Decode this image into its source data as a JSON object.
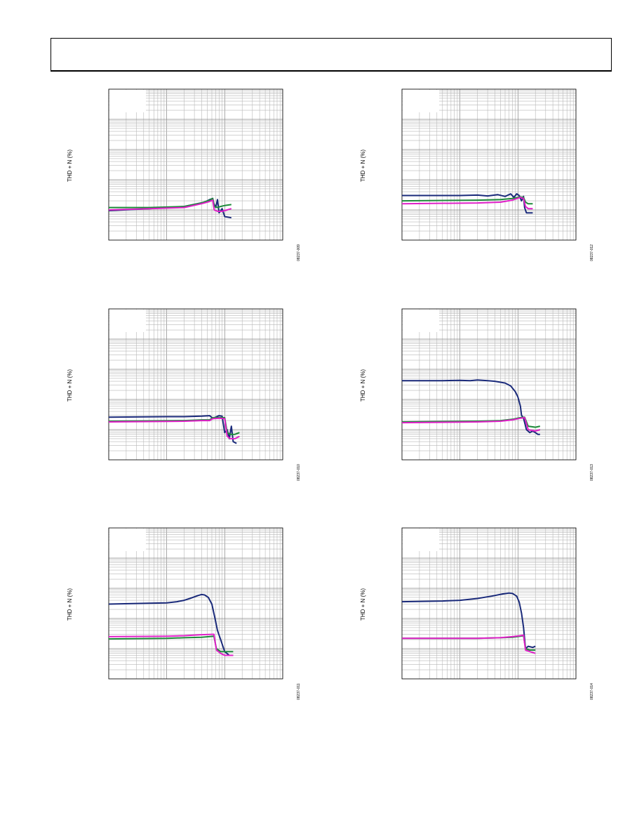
{
  "header": {
    "title": ""
  },
  "colors": {
    "navy": "#1a2a7a",
    "green": "#1e8a3a",
    "magenta": "#e020c8",
    "grid": "#b8b8b8"
  },
  "chart_data": [
    {
      "type": "line",
      "ylabel": "THD + N (%)",
      "figure_code": "08237-009",
      "xscale": "log",
      "yscale": "log",
      "xlim": [
        1,
        1000
      ],
      "ylim": [
        0.001,
        100
      ],
      "series": [
        {
          "color": "navy",
          "points": [
            [
              1,
              0.0095
            ],
            [
              5,
              0.011
            ],
            [
              20,
              0.013
            ],
            [
              45,
              0.018
            ],
            [
              55,
              0.022
            ],
            [
              62,
              0.024
            ],
            [
              65,
              0.016
            ],
            [
              70,
              0.012
            ],
            [
              75,
              0.022
            ],
            [
              80,
              0.008
            ],
            [
              90,
              0.011
            ],
            [
              100,
              0.006
            ],
            [
              130,
              0.0055
            ]
          ]
        },
        {
          "color": "green",
          "points": [
            [
              1,
              0.012
            ],
            [
              5,
              0.012
            ],
            [
              20,
              0.013
            ],
            [
              40,
              0.017
            ],
            [
              55,
              0.021
            ],
            [
              62,
              0.024
            ],
            [
              66,
              0.013
            ],
            [
              75,
              0.012
            ],
            [
              85,
              0.013
            ],
            [
              100,
              0.014
            ],
            [
              130,
              0.015
            ]
          ]
        },
        {
          "color": "magenta",
          "points": [
            [
              1,
              0.01
            ],
            [
              5,
              0.011
            ],
            [
              20,
              0.012
            ],
            [
              40,
              0.016
            ],
            [
              55,
              0.019
            ],
            [
              62,
              0.021
            ],
            [
              66,
              0.01
            ],
            [
              75,
              0.009
            ],
            [
              90,
              0.009
            ],
            [
              110,
              0.01
            ],
            [
              130,
              0.011
            ]
          ]
        }
      ]
    },
    {
      "type": "line",
      "ylabel": "THD + N (%)",
      "figure_code": "08237-012",
      "xscale": "log",
      "yscale": "log",
      "xlim": [
        1,
        1000
      ],
      "ylim": [
        0.001,
        100
      ],
      "series": [
        {
          "color": "navy",
          "points": [
            [
              1,
              0.03
            ],
            [
              10,
              0.03
            ],
            [
              20,
              0.031
            ],
            [
              30,
              0.029
            ],
            [
              45,
              0.032
            ],
            [
              60,
              0.028
            ],
            [
              75,
              0.034
            ],
            [
              85,
              0.026
            ],
            [
              95,
              0.034
            ],
            [
              105,
              0.03
            ],
            [
              115,
              0.02
            ],
            [
              125,
              0.028
            ],
            [
              130,
              0.012
            ],
            [
              140,
              0.008
            ],
            [
              160,
              0.008
            ],
            [
              180,
              0.008
            ]
          ]
        },
        {
          "color": "green",
          "points": [
            [
              1,
              0.02
            ],
            [
              20,
              0.021
            ],
            [
              50,
              0.022
            ],
            [
              80,
              0.024
            ],
            [
              110,
              0.027
            ],
            [
              125,
              0.026
            ],
            [
              135,
              0.018
            ],
            [
              150,
              0.016
            ],
            [
              180,
              0.016
            ]
          ]
        },
        {
          "color": "magenta",
          "points": [
            [
              1,
              0.016
            ],
            [
              20,
              0.017
            ],
            [
              50,
              0.018
            ],
            [
              80,
              0.021
            ],
            [
              110,
              0.026
            ],
            [
              125,
              0.024
            ],
            [
              135,
              0.013
            ],
            [
              150,
              0.011
            ],
            [
              180,
              0.011
            ]
          ]
        }
      ]
    },
    {
      "type": "line",
      "ylabel": "THD + N (%)",
      "figure_code": "08237-010",
      "xscale": "log",
      "yscale": "log",
      "xlim": [
        1,
        1000
      ],
      "ylim": [
        0.001,
        100
      ],
      "series": [
        {
          "color": "navy",
          "points": [
            [
              1,
              0.026
            ],
            [
              10,
              0.027
            ],
            [
              20,
              0.027
            ],
            [
              40,
              0.028
            ],
            [
              55,
              0.029
            ],
            [
              62,
              0.024
            ],
            [
              70,
              0.026
            ],
            [
              80,
              0.029
            ],
            [
              90,
              0.028
            ],
            [
              100,
              0.008
            ],
            [
              110,
              0.01
            ],
            [
              120,
              0.005
            ],
            [
              130,
              0.013
            ],
            [
              140,
              0.004
            ],
            [
              160,
              0.0035
            ]
          ]
        },
        {
          "color": "green",
          "points": [
            [
              1,
              0.019
            ],
            [
              20,
              0.02
            ],
            [
              40,
              0.021
            ],
            [
              55,
              0.021
            ],
            [
              62,
              0.025
            ],
            [
              80,
              0.025
            ],
            [
              100,
              0.025
            ],
            [
              110,
              0.008
            ],
            [
              125,
              0.007
            ],
            [
              150,
              0.007
            ],
            [
              180,
              0.008
            ]
          ]
        },
        {
          "color": "magenta",
          "points": [
            [
              1,
              0.018
            ],
            [
              20,
              0.019
            ],
            [
              40,
              0.02
            ],
            [
              55,
              0.02
            ],
            [
              62,
              0.023
            ],
            [
              80,
              0.024
            ],
            [
              100,
              0.023
            ],
            [
              110,
              0.006
            ],
            [
              125,
              0.005
            ],
            [
              150,
              0.005
            ],
            [
              180,
              0.006
            ]
          ]
        }
      ]
    },
    {
      "type": "line",
      "ylabel": "THD + N (%)",
      "figure_code": "08237-013",
      "xscale": "log",
      "yscale": "log",
      "xlim": [
        1,
        1000
      ],
      "ylim": [
        0.001,
        100
      ],
      "series": [
        {
          "color": "navy",
          "points": [
            [
              1,
              0.42
            ],
            [
              5,
              0.42
            ],
            [
              10,
              0.43
            ],
            [
              15,
              0.42
            ],
            [
              20,
              0.44
            ],
            [
              30,
              0.42
            ],
            [
              40,
              0.4
            ],
            [
              60,
              0.35
            ],
            [
              75,
              0.28
            ],
            [
              90,
              0.18
            ],
            [
              100,
              0.12
            ],
            [
              110,
              0.06
            ],
            [
              115,
              0.03
            ],
            [
              125,
              0.024
            ],
            [
              140,
              0.01
            ],
            [
              160,
              0.008
            ],
            [
              180,
              0.009
            ],
            [
              200,
              0.008
            ],
            [
              220,
              0.007
            ],
            [
              240,
              0.007
            ]
          ]
        },
        {
          "color": "green",
          "points": [
            [
              1,
              0.018
            ],
            [
              20,
              0.019
            ],
            [
              50,
              0.02
            ],
            [
              80,
              0.022
            ],
            [
              110,
              0.025
            ],
            [
              130,
              0.026
            ],
            [
              150,
              0.013
            ],
            [
              200,
              0.012
            ],
            [
              240,
              0.013
            ]
          ]
        },
        {
          "color": "magenta",
          "points": [
            [
              1,
              0.017
            ],
            [
              20,
              0.018
            ],
            [
              50,
              0.019
            ],
            [
              80,
              0.021
            ],
            [
              110,
              0.024
            ],
            [
              130,
              0.025
            ],
            [
              150,
              0.01
            ],
            [
              200,
              0.009
            ],
            [
              240,
              0.01
            ]
          ]
        }
      ]
    },
    {
      "type": "line",
      "ylabel": "THD + N (%)",
      "figure_code": "08237-011",
      "xscale": "log",
      "yscale": "log",
      "xlim": [
        1,
        1000
      ],
      "ylim": [
        0.001,
        100
      ],
      "series": [
        {
          "color": "navy",
          "points": [
            [
              1,
              0.3
            ],
            [
              5,
              0.32
            ],
            [
              10,
              0.33
            ],
            [
              15,
              0.36
            ],
            [
              20,
              0.4
            ],
            [
              25,
              0.46
            ],
            [
              30,
              0.52
            ],
            [
              35,
              0.58
            ],
            [
              40,
              0.62
            ],
            [
              45,
              0.6
            ],
            [
              52,
              0.5
            ],
            [
              60,
              0.3
            ],
            [
              68,
              0.1
            ],
            [
              75,
              0.04
            ],
            [
              85,
              0.02
            ],
            [
              100,
              0.008
            ],
            [
              120,
              0.006
            ],
            [
              140,
              0.006
            ]
          ]
        },
        {
          "color": "green",
          "points": [
            [
              1,
              0.021
            ],
            [
              10,
              0.022
            ],
            [
              20,
              0.023
            ],
            [
              40,
              0.024
            ],
            [
              65,
              0.026
            ],
            [
              72,
              0.01
            ],
            [
              85,
              0.008
            ],
            [
              100,
              0.008
            ],
            [
              140,
              0.008
            ]
          ]
        },
        {
          "color": "magenta",
          "points": [
            [
              1,
              0.025
            ],
            [
              10,
              0.026
            ],
            [
              20,
              0.027
            ],
            [
              40,
              0.029
            ],
            [
              65,
              0.03
            ],
            [
              72,
              0.009
            ],
            [
              85,
              0.007
            ],
            [
              100,
              0.006
            ],
            [
              140,
              0.006
            ]
          ]
        }
      ]
    },
    {
      "type": "line",
      "ylabel": "THD + N (%)",
      "figure_code": "08237-014",
      "xscale": "log",
      "yscale": "log",
      "xlim": [
        1,
        1000
      ],
      "ylim": [
        0.001,
        100
      ],
      "series": [
        {
          "color": "navy",
          "points": [
            [
              1,
              0.36
            ],
            [
              5,
              0.38
            ],
            [
              10,
              0.4
            ],
            [
              20,
              0.46
            ],
            [
              35,
              0.55
            ],
            [
              55,
              0.65
            ],
            [
              70,
              0.7
            ],
            [
              80,
              0.68
            ],
            [
              95,
              0.55
            ],
            [
              105,
              0.35
            ],
            [
              115,
              0.15
            ],
            [
              125,
              0.05
            ],
            [
              135,
              0.01
            ],
            [
              150,
              0.012
            ],
            [
              180,
              0.011
            ],
            [
              200,
              0.012
            ]
          ]
        },
        {
          "color": "green",
          "points": [
            [
              1,
              0.022
            ],
            [
              20,
              0.022
            ],
            [
              50,
              0.023
            ],
            [
              80,
              0.024
            ],
            [
              110,
              0.026
            ],
            [
              125,
              0.027
            ],
            [
              135,
              0.01
            ],
            [
              160,
              0.009
            ],
            [
              200,
              0.009
            ]
          ]
        },
        {
          "color": "magenta",
          "points": [
            [
              1,
              0.022
            ],
            [
              20,
              0.022
            ],
            [
              50,
              0.023
            ],
            [
              80,
              0.025
            ],
            [
              110,
              0.027
            ],
            [
              125,
              0.028
            ],
            [
              135,
              0.009
            ],
            [
              160,
              0.008
            ],
            [
              200,
              0.007
            ]
          ]
        }
      ]
    }
  ]
}
